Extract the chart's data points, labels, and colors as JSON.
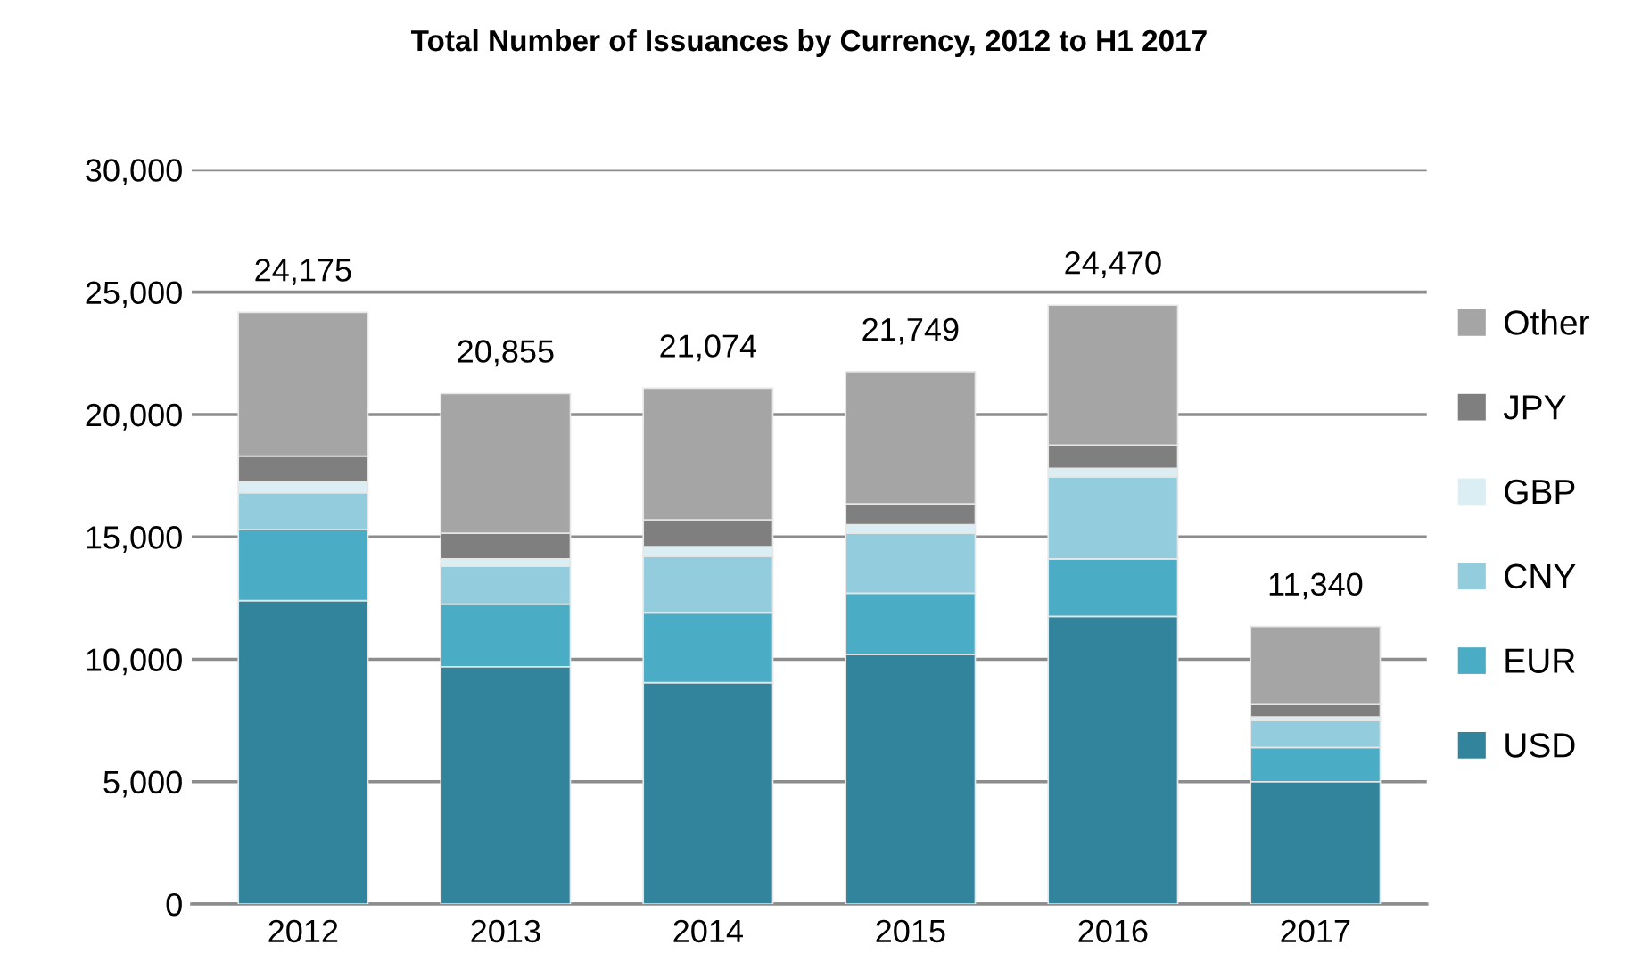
{
  "chart_data": {
    "type": "bar",
    "title": "Total Number of Issuances by Currency, 2012 to H1 2017",
    "categories": [
      "2012",
      "2013",
      "2014",
      "2015",
      "2016",
      "2017"
    ],
    "stacked": true,
    "series": [
      {
        "name": "USD",
        "color": "#31849b",
        "values": [
          12400,
          9700,
          9050,
          10200,
          11750,
          5000
        ]
      },
      {
        "name": "EUR",
        "color": "#4bacc6",
        "values": [
          2900,
          2550,
          2850,
          2500,
          2350,
          1400
        ]
      },
      {
        "name": "CNY",
        "color": "#93cddd",
        "values": [
          1500,
          1550,
          2300,
          2450,
          3350,
          1100
        ]
      },
      {
        "name": "GBP",
        "color": "#daeef3",
        "values": [
          450,
          300,
          400,
          350,
          350,
          150
        ]
      },
      {
        "name": "JPY",
        "color": "#7f7f7f",
        "values": [
          1050,
          1050,
          1100,
          850,
          950,
          500
        ]
      },
      {
        "name": "Other",
        "color": "#a5a5a5",
        "values": [
          5875,
          5705,
          5374,
          5399,
          5720,
          3190
        ]
      }
    ],
    "totals": [
      "24,175",
      "20,855",
      "21,074",
      "21,749",
      "24,470",
      "11,340"
    ],
    "ylim": [
      0,
      30000
    ],
    "yticks": [
      {
        "value": 0,
        "label": "0"
      },
      {
        "value": 5000,
        "label": "5,000"
      },
      {
        "value": 10000,
        "label": "10,000"
      },
      {
        "value": 15000,
        "label": "15,000"
      },
      {
        "value": 20000,
        "label": "20,000"
      },
      {
        "value": 25000,
        "label": "25,000"
      },
      {
        "value": 30000,
        "label": "30,000"
      }
    ],
    "grid": "y",
    "legend": "right"
  }
}
